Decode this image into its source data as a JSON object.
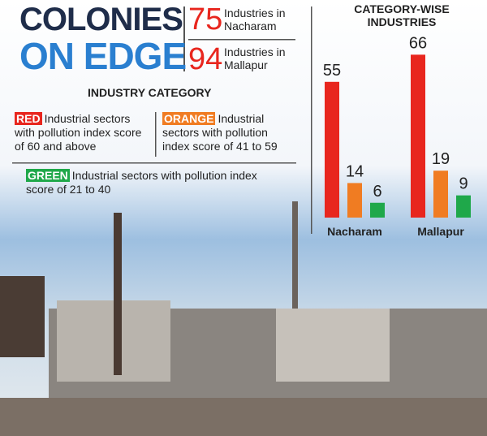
{
  "headline": {
    "title_line1": "COLONIES",
    "title_line2": "ON EDGE",
    "stats": [
      {
        "value": 75,
        "label": "Industries in Nacharam"
      },
      {
        "value": 94,
        "label": "Industries in Mallapur"
      }
    ]
  },
  "legend": {
    "title": "INDUSTRY CATEGORY",
    "descriptions": [
      "Industrial sectors with pollution index score of 60 and above",
      "Industrial sectors with pollution index score of  41 to 59",
      "Industrial sectors with pollution index score of  21 to 40"
    ]
  },
  "chart_data": {
    "type": "bar",
    "title": "CATEGORY-WISE INDUSTRIES",
    "categories": [
      "Nacharam",
      "Mallapur"
    ],
    "series": [
      {
        "name": "RED",
        "color": "#e8261e",
        "values": [
          55,
          66
        ]
      },
      {
        "name": "ORANGE",
        "color": "#f07c22",
        "values": [
          14,
          19
        ]
      },
      {
        "name": "GREEN",
        "color": "#1fa84a",
        "values": [
          6,
          9
        ]
      }
    ]
  }
}
